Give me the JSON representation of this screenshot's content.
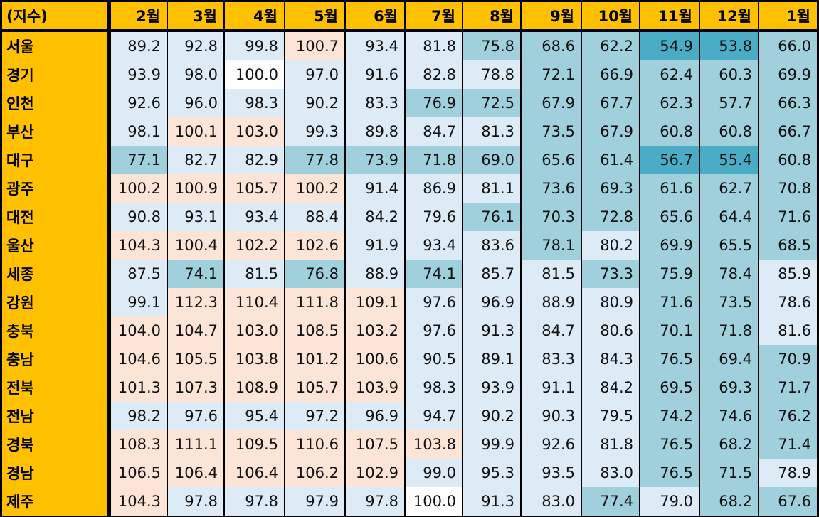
{
  "table": {
    "corner_label": "(지수)",
    "months": [
      "2월",
      "3월",
      "4월",
      "5월",
      "6월",
      "7월",
      "8월",
      "9월",
      "10월",
      "11월",
      "12월",
      "1월"
    ],
    "color_scale": {
      "white": "#ffffff",
      "peach": "#fce4d6",
      "light_blue": "#ddebf7",
      "medium_blue": "#9fd0dc",
      "dark_blue": "#4bacc6",
      "header_gold": "#ffc000"
    },
    "groups": [
      {
        "rows": [
          {
            "region": "서울",
            "values": [
              89.2,
              92.8,
              99.8,
              100.7,
              93.4,
              81.8,
              75.8,
              68.6,
              62.2,
              54.9,
              53.8,
              66.0
            ]
          },
          {
            "region": "경기",
            "values": [
              93.9,
              98.0,
              100.0,
              97.0,
              91.6,
              82.8,
              78.8,
              72.1,
              66.9,
              62.4,
              60.3,
              69.9
            ]
          },
          {
            "region": "인천",
            "values": [
              92.6,
              96.0,
              98.3,
              90.2,
              83.3,
              76.9,
              72.5,
              67.9,
              67.7,
              62.3,
              57.7,
              66.3
            ]
          }
        ]
      },
      {
        "rows": [
          {
            "region": "부산",
            "values": [
              98.1,
              100.1,
              103.0,
              99.3,
              89.8,
              84.7,
              81.3,
              73.5,
              67.9,
              60.8,
              60.8,
              66.7
            ]
          },
          {
            "region": "대구",
            "values": [
              77.1,
              82.7,
              82.9,
              77.8,
              73.9,
              71.8,
              69.0,
              65.6,
              61.4,
              56.7,
              55.4,
              60.8
            ]
          },
          {
            "region": "광주",
            "values": [
              100.2,
              100.9,
              105.7,
              100.2,
              91.4,
              86.9,
              81.1,
              73.6,
              69.3,
              61.6,
              62.7,
              70.8
            ]
          },
          {
            "region": "대전",
            "values": [
              90.8,
              93.1,
              93.4,
              88.4,
              84.2,
              79.6,
              76.1,
              70.3,
              72.8,
              65.6,
              64.4,
              71.6
            ]
          },
          {
            "region": "울산",
            "values": [
              104.3,
              100.4,
              102.2,
              102.6,
              91.9,
              93.4,
              83.6,
              78.1,
              80.2,
              69.9,
              65.5,
              68.5
            ]
          }
        ]
      },
      {
        "rows": [
          {
            "region": "세종",
            "values": [
              87.5,
              74.1,
              81.5,
              76.8,
              88.9,
              74.1,
              85.7,
              81.5,
              73.3,
              75.9,
              78.4,
              85.9
            ]
          },
          {
            "region": "강원",
            "values": [
              99.1,
              112.3,
              110.4,
              111.8,
              109.1,
              97.6,
              96.9,
              88.9,
              80.9,
              71.6,
              73.5,
              78.6
            ]
          },
          {
            "region": "충북",
            "values": [
              104.0,
              104.7,
              103.0,
              108.5,
              103.2,
              97.6,
              91.3,
              84.7,
              80.6,
              70.1,
              71.8,
              81.6
            ]
          },
          {
            "region": "충남",
            "values": [
              104.6,
              105.5,
              103.8,
              101.2,
              100.6,
              90.5,
              89.1,
              83.3,
              84.3,
              76.5,
              69.4,
              70.9
            ]
          },
          {
            "region": "전북",
            "values": [
              101.3,
              107.3,
              108.9,
              105.7,
              103.9,
              98.3,
              93.9,
              91.1,
              84.2,
              69.5,
              69.3,
              71.7
            ]
          },
          {
            "region": "전남",
            "values": [
              98.2,
              97.6,
              95.4,
              97.2,
              96.9,
              94.7,
              90.2,
              90.3,
              79.5,
              74.2,
              74.6,
              76.2
            ]
          },
          {
            "region": "경북",
            "values": [
              108.3,
              111.1,
              109.5,
              110.6,
              107.5,
              103.8,
              99.9,
              92.6,
              81.8,
              76.5,
              68.2,
              71.4
            ]
          },
          {
            "region": "경남",
            "values": [
              106.5,
              106.4,
              106.4,
              106.2,
              102.9,
              99.0,
              95.3,
              93.5,
              83.0,
              76.5,
              71.5,
              78.9
            ]
          },
          {
            "region": "제주",
            "values": [
              104.3,
              97.8,
              97.8,
              97.9,
              97.8,
              100.0,
              91.3,
              83.0,
              77.4,
              79.0,
              68.2,
              67.6
            ]
          }
        ]
      }
    ]
  },
  "chart_data": {
    "type": "heatmap",
    "x": [
      "2월",
      "3월",
      "4월",
      "5월",
      "6월",
      "7월",
      "8월",
      "9월",
      "10월",
      "11월",
      "12월",
      "1월"
    ],
    "y": [
      "서울",
      "경기",
      "인천",
      "부산",
      "대구",
      "광주",
      "대전",
      "울산",
      "세종",
      "강원",
      "충북",
      "충남",
      "전북",
      "전남",
      "경북",
      "경남",
      "제주"
    ],
    "values": [
      [
        89.2,
        92.8,
        99.8,
        100.7,
        93.4,
        81.8,
        75.8,
        68.6,
        62.2,
        54.9,
        53.8,
        66.0
      ],
      [
        93.9,
        98.0,
        100.0,
        97.0,
        91.6,
        82.8,
        78.8,
        72.1,
        66.9,
        62.4,
        60.3,
        69.9
      ],
      [
        92.6,
        96.0,
        98.3,
        90.2,
        83.3,
        76.9,
        72.5,
        67.9,
        67.7,
        62.3,
        57.7,
        66.3
      ],
      [
        98.1,
        100.1,
        103.0,
        99.3,
        89.8,
        84.7,
        81.3,
        73.5,
        67.9,
        60.8,
        60.8,
        66.7
      ],
      [
        77.1,
        82.7,
        82.9,
        77.8,
        73.9,
        71.8,
        69.0,
        65.6,
        61.4,
        56.7,
        55.4,
        60.8
      ],
      [
        100.2,
        100.9,
        105.7,
        100.2,
        91.4,
        86.9,
        81.1,
        73.6,
        69.3,
        61.6,
        62.7,
        70.8
      ],
      [
        90.8,
        93.1,
        93.4,
        88.4,
        84.2,
        79.6,
        76.1,
        70.3,
        72.8,
        65.6,
        64.4,
        71.6
      ],
      [
        104.3,
        100.4,
        102.2,
        102.6,
        91.9,
        93.4,
        83.6,
        78.1,
        80.2,
        69.9,
        65.5,
        68.5
      ],
      [
        87.5,
        74.1,
        81.5,
        76.8,
        88.9,
        74.1,
        85.7,
        81.5,
        73.3,
        75.9,
        78.4,
        85.9
      ],
      [
        99.1,
        112.3,
        110.4,
        111.8,
        109.1,
        97.6,
        96.9,
        88.9,
        80.9,
        71.6,
        73.5,
        78.6
      ],
      [
        104.0,
        104.7,
        103.0,
        108.5,
        103.2,
        97.6,
        91.3,
        84.7,
        80.6,
        70.1,
        71.8,
        81.6
      ],
      [
        104.6,
        105.5,
        103.8,
        101.2,
        100.6,
        90.5,
        89.1,
        83.3,
        84.3,
        76.5,
        69.4,
        70.9
      ],
      [
        101.3,
        107.3,
        108.9,
        105.7,
        103.9,
        98.3,
        93.9,
        91.1,
        84.2,
        69.5,
        69.3,
        71.7
      ],
      [
        98.2,
        97.6,
        95.4,
        97.2,
        96.9,
        94.7,
        90.2,
        90.3,
        79.5,
        74.2,
        74.6,
        76.2
      ],
      [
        108.3,
        111.1,
        109.5,
        110.6,
        107.5,
        103.8,
        99.9,
        92.6,
        81.8,
        76.5,
        68.2,
        71.4
      ],
      [
        106.5,
        106.4,
        106.4,
        106.2,
        102.9,
        99.0,
        95.3,
        93.5,
        83.0,
        76.5,
        71.5,
        78.9
      ],
      [
        104.3,
        97.8,
        97.8,
        97.9,
        97.8,
        100.0,
        91.3,
        83.0,
        77.4,
        79.0,
        68.2,
        67.6
      ]
    ],
    "title": "",
    "xlabel": "",
    "ylabel": "",
    "grid": false,
    "legend": "none"
  }
}
